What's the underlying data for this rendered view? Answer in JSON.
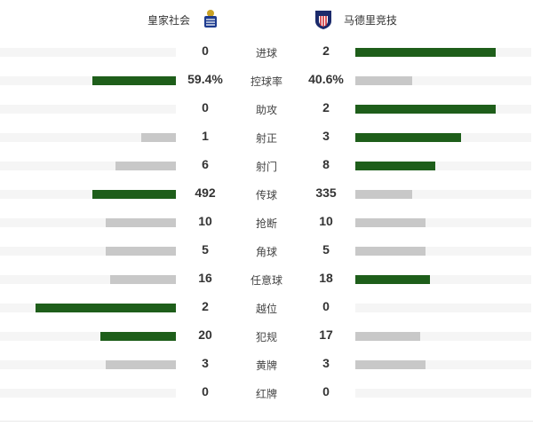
{
  "teams": {
    "home": "皇家社会",
    "away": "马德里竞技"
  },
  "colors": {
    "leader": "#1e5e1a",
    "trailer": "#c8c8c8",
    "track": "#f5f5f5"
  },
  "stats": [
    {
      "label": "进球",
      "home": "0",
      "away": "2",
      "h": 0,
      "a": 2
    },
    {
      "label": "控球率",
      "home": "59.4%",
      "away": "40.6%",
      "h": 59.4,
      "a": 40.6
    },
    {
      "label": "助攻",
      "home": "0",
      "away": "2",
      "h": 0,
      "a": 2
    },
    {
      "label": "射正",
      "home": "1",
      "away": "3",
      "h": 1,
      "a": 3
    },
    {
      "label": "射门",
      "home": "6",
      "away": "8",
      "h": 6,
      "a": 8
    },
    {
      "label": "传球",
      "home": "492",
      "away": "335",
      "h": 492,
      "a": 335
    },
    {
      "label": "抢断",
      "home": "10",
      "away": "10",
      "h": 10,
      "a": 10
    },
    {
      "label": "角球",
      "home": "5",
      "away": "5",
      "h": 5,
      "a": 5
    },
    {
      "label": "任意球",
      "home": "16",
      "away": "18",
      "h": 16,
      "a": 18
    },
    {
      "label": "越位",
      "home": "2",
      "away": "0",
      "h": 2,
      "a": 0
    },
    {
      "label": "犯规",
      "home": "20",
      "away": "17",
      "h": 20,
      "a": 17
    },
    {
      "label": "黄牌",
      "home": "3",
      "away": "3",
      "h": 3,
      "a": 3
    },
    {
      "label": "红牌",
      "home": "0",
      "away": "0",
      "h": 0,
      "a": 0
    }
  ]
}
